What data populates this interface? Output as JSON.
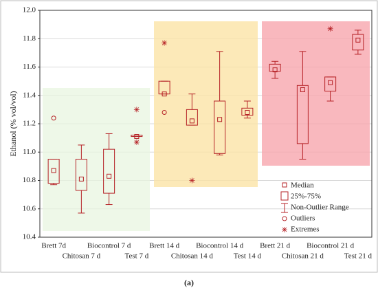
{
  "chart_data": {
    "type": "box",
    "y_label": "Ethanol (% vol/vol)",
    "caption": "(a)",
    "categories": [
      "Brett 7d",
      "Chitosan 7 d",
      "Biocontrol 7 d",
      "Test 7 d",
      "Brett 14 d",
      "Chitosan 14 d",
      "Biocontrol 14 d",
      "Test 14 d",
      "Brett 21 d",
      "Chitosan 21 d",
      "Biocontrol 21 d",
      "Test 21 d"
    ],
    "median": [
      10.87,
      10.81,
      10.83,
      11.11,
      11.41,
      11.22,
      11.23,
      11.28,
      11.58,
      11.44,
      11.49,
      11.79
    ],
    "q1": [
      10.78,
      10.73,
      10.71,
      11.11,
      11.41,
      11.19,
      10.99,
      11.26,
      11.57,
      11.06,
      11.43,
      11.72
    ],
    "q3": [
      10.95,
      10.95,
      11.02,
      11.12,
      11.5,
      11.3,
      11.36,
      11.31,
      11.62,
      11.47,
      11.53,
      11.83
    ],
    "whisker_low": [
      10.77,
      10.57,
      10.63,
      11.11,
      11.41,
      11.19,
      10.98,
      11.24,
      11.52,
      10.95,
      11.36,
      11.69
    ],
    "whisker_high": [
      10.95,
      11.05,
      11.13,
      11.12,
      11.5,
      11.41,
      11.71,
      11.36,
      11.64,
      11.71,
      11.53,
      11.86
    ],
    "outliers": [
      [
        11.24
      ],
      [],
      [],
      [],
      [
        11.28
      ],
      [],
      [],
      [],
      [],
      [],
      [],
      []
    ],
    "extremes": [
      [],
      [],
      [],
      [
        11.3,
        11.07
      ],
      [
        11.77
      ],
      [
        10.8
      ],
      [],
      [],
      [],
      [],
      [
        11.87
      ],
      []
    ],
    "legend": [
      "Median",
      "25%-75%",
      "Non-Outlier Range",
      "Outliers",
      "Extremes"
    ],
    "color": "#b52025",
    "ylim": [
      10.4,
      12.0
    ],
    "yticks": [
      10.4,
      10.6,
      10.8,
      {
        "value": 11,
        "label": "11.0"
      },
      11.2,
      11.4,
      11.6,
      11.8,
      {
        "value": 12,
        "label": "12.0"
      }
    ],
    "grid": true
  }
}
